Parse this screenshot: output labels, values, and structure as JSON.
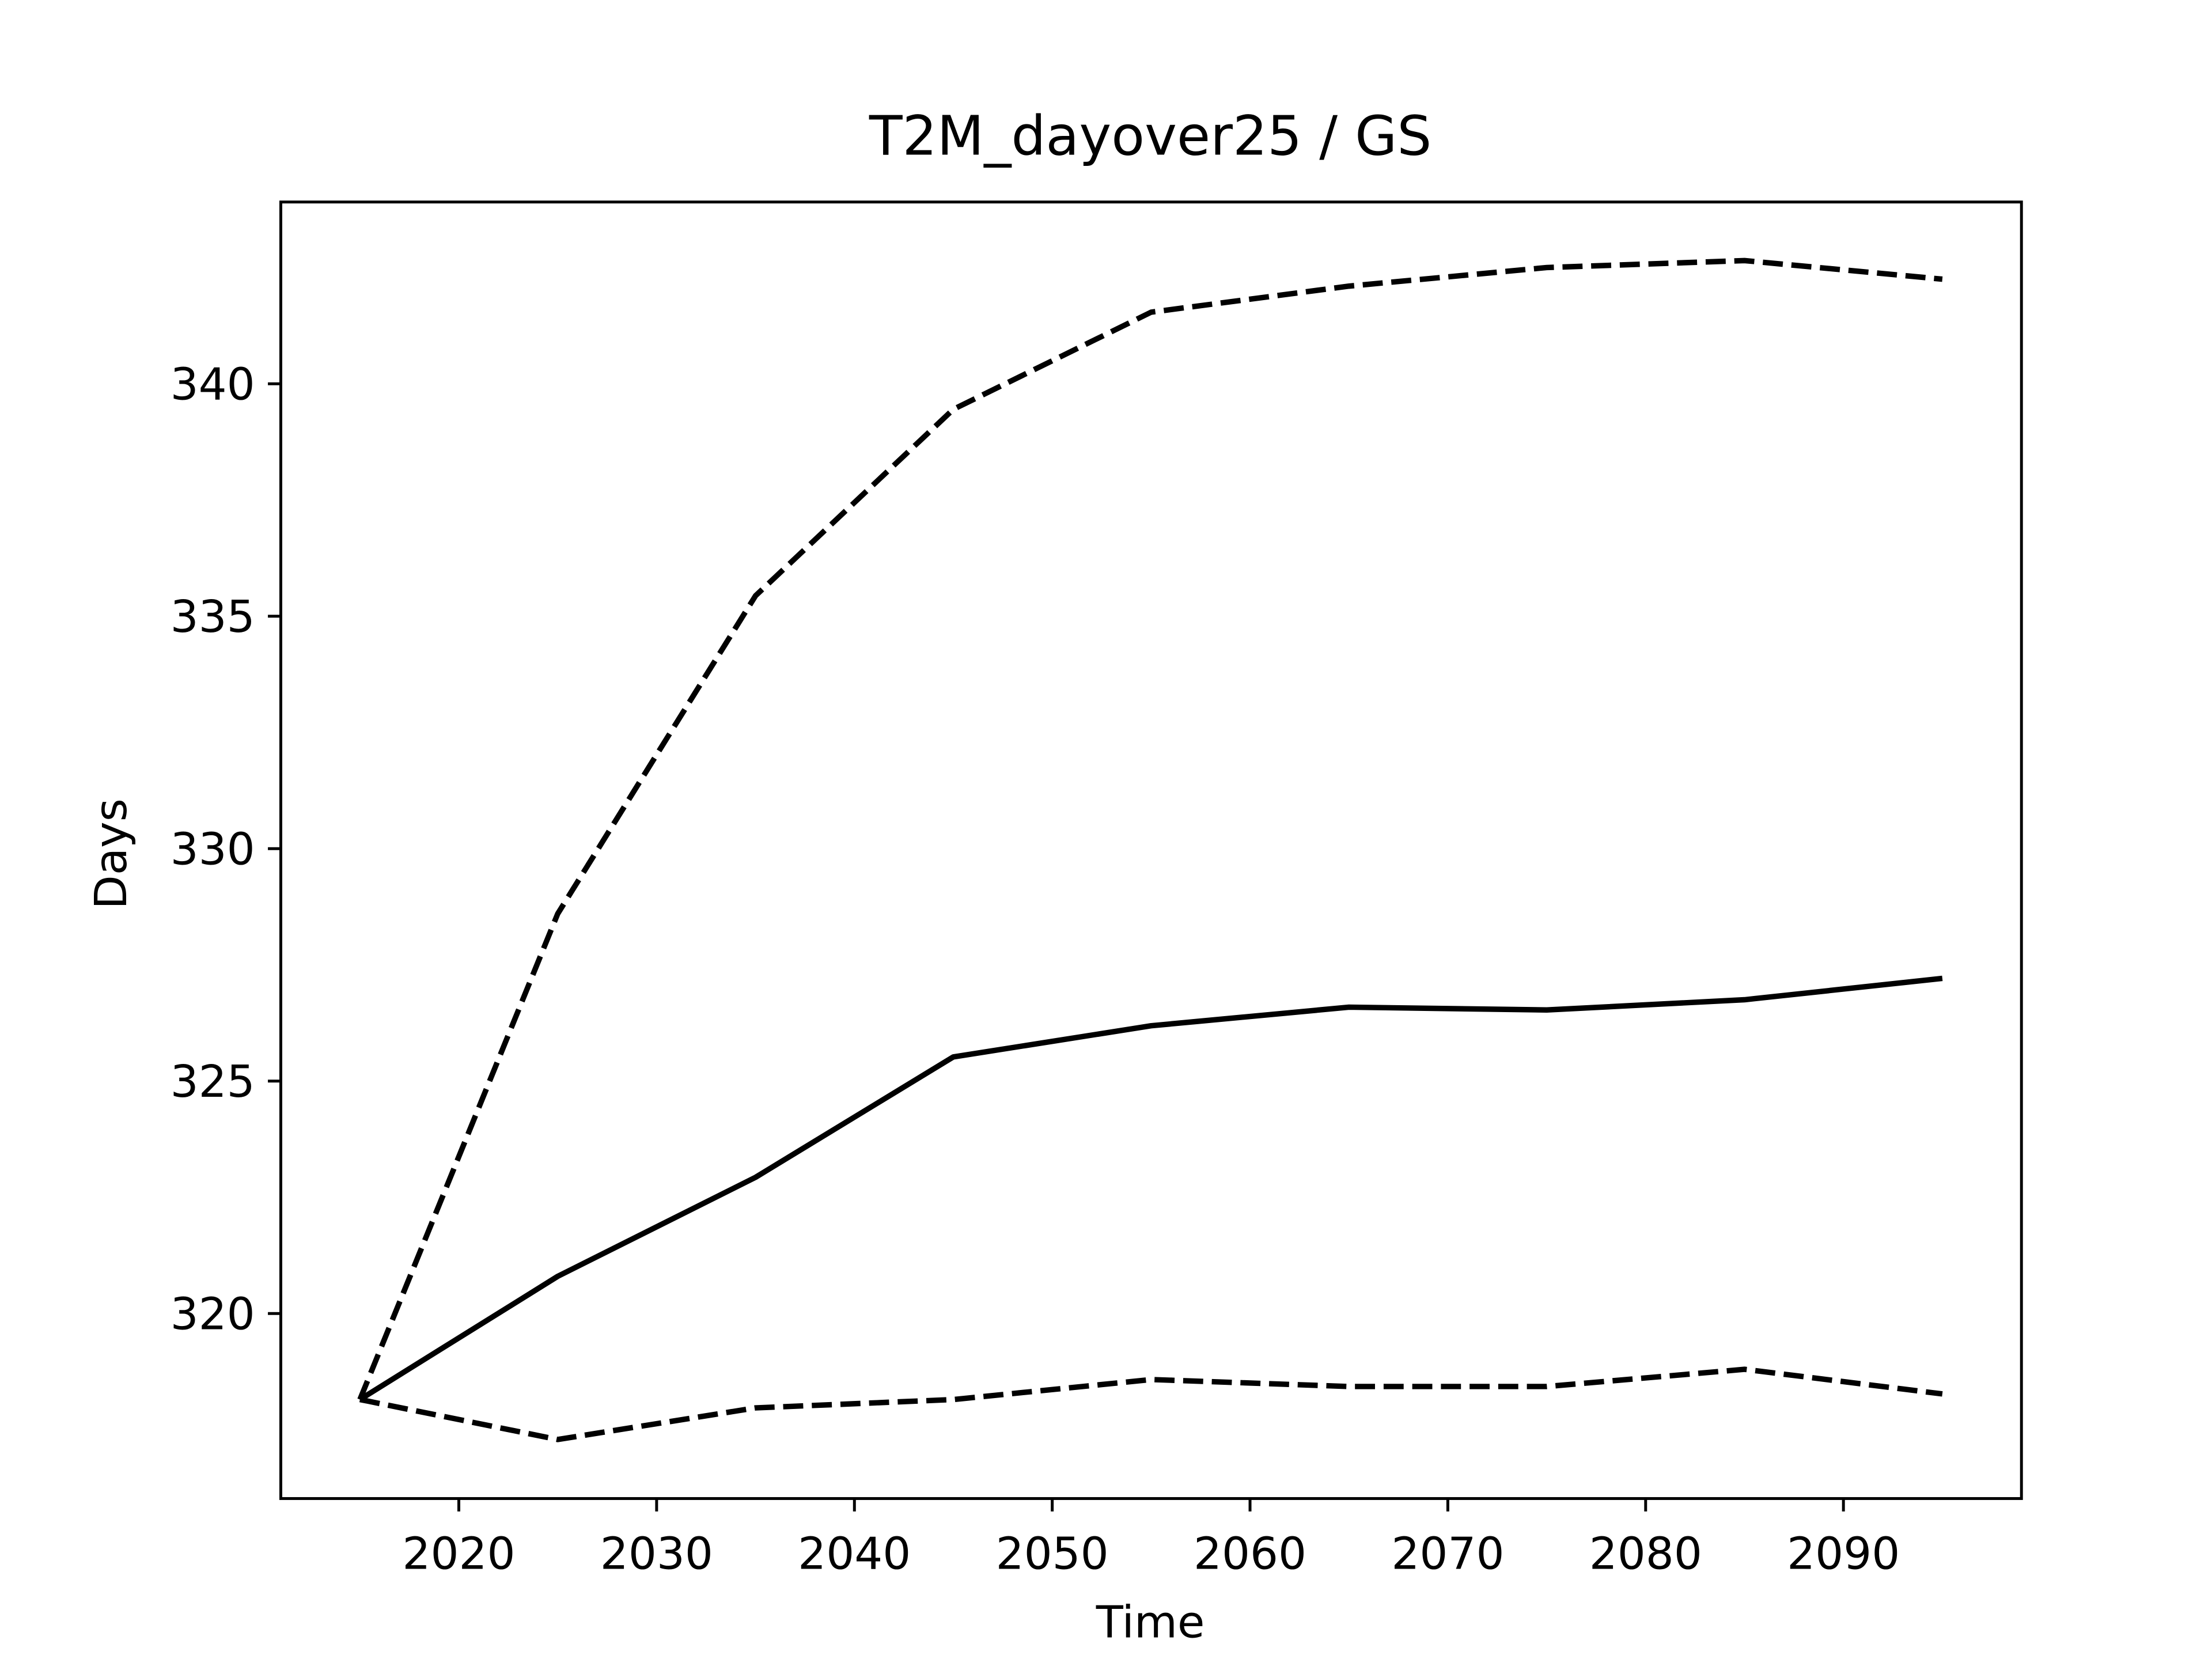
{
  "chart_data": {
    "type": "line",
    "title": "T2M_dayover25 / GS",
    "x_label": "Time",
    "y_label": "Days",
    "x": [
      2015,
      2025,
      2035,
      2045,
      2055,
      2065,
      2075,
      2085,
      2095
    ],
    "series": [
      {
        "color": "#000000",
        "linestyle": "solid",
        "values": [
          318.15,
          320.8,
          322.93,
          325.52,
          326.19,
          326.59,
          326.53,
          326.75,
          327.21
        ]
      },
      {
        "color": "#000000",
        "linestyle": "dashed",
        "values": [
          318.15,
          328.6,
          335.44,
          339.45,
          341.54,
          342.1,
          342.5,
          342.65,
          342.25
        ]
      },
      {
        "color": "#000000",
        "linestyle": "dashed",
        "values": [
          318.15,
          317.29,
          317.97,
          318.15,
          318.58,
          318.43,
          318.43,
          318.8,
          318.27
        ]
      }
    ],
    "xlim": [
      2011,
      2099
    ],
    "ylim": [
      316.02,
      343.91
    ],
    "xticks": [
      2020,
      2030,
      2040,
      2050,
      2060,
      2070,
      2080,
      2090
    ],
    "yticks": [
      320,
      325,
      330,
      335,
      340
    ]
  }
}
